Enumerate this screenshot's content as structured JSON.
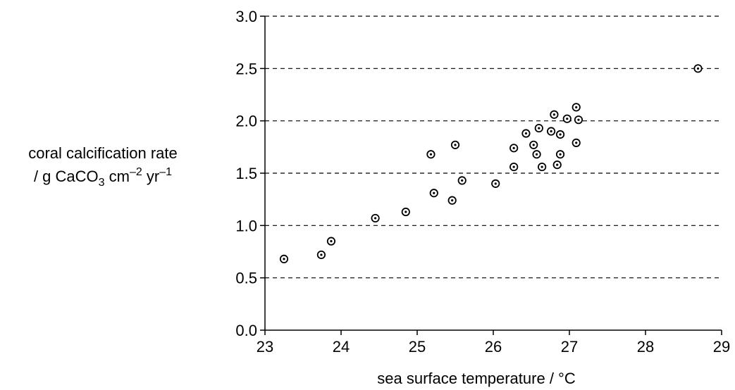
{
  "chart_data": {
    "type": "scatter",
    "title": "",
    "xlabel": "sea surface temperature / °C",
    "ylabel": {
      "line1": "coral calcification rate",
      "line2_prefix": "/ g CaCO",
      "line2_sub": "3",
      "line2_unit1": " cm",
      "line2_sup1": "–2",
      "line2_unit2": " yr",
      "line2_sup2": "–1"
    },
    "xlim": [
      23,
      29
    ],
    "ylim": [
      0.0,
      3.0
    ],
    "xticks": [
      "23",
      "24",
      "25",
      "26",
      "27",
      "28",
      "29"
    ],
    "yticks": [
      "0.0",
      "0.5",
      "1.0",
      "1.5",
      "2.0",
      "2.5",
      "3.0"
    ],
    "grid": "horizontal dashed",
    "marker": "circled dot",
    "points": [
      {
        "x": 23.25,
        "y": 0.68
      },
      {
        "x": 23.74,
        "y": 0.72
      },
      {
        "x": 23.87,
        "y": 0.85
      },
      {
        "x": 24.45,
        "y": 1.07
      },
      {
        "x": 24.85,
        "y": 1.13
      },
      {
        "x": 25.18,
        "y": 1.68
      },
      {
        "x": 25.22,
        "y": 1.31
      },
      {
        "x": 25.46,
        "y": 1.24
      },
      {
        "x": 25.5,
        "y": 1.77
      },
      {
        "x": 25.59,
        "y": 1.43
      },
      {
        "x": 26.03,
        "y": 1.4
      },
      {
        "x": 26.27,
        "y": 1.74
      },
      {
        "x": 26.27,
        "y": 1.56
      },
      {
        "x": 26.43,
        "y": 1.88
      },
      {
        "x": 26.53,
        "y": 1.77
      },
      {
        "x": 26.57,
        "y": 1.68
      },
      {
        "x": 26.6,
        "y": 1.93
      },
      {
        "x": 26.64,
        "y": 1.56
      },
      {
        "x": 26.76,
        "y": 1.9
      },
      {
        "x": 26.8,
        "y": 2.06
      },
      {
        "x": 26.84,
        "y": 1.58
      },
      {
        "x": 26.88,
        "y": 1.87
      },
      {
        "x": 26.88,
        "y": 1.68
      },
      {
        "x": 26.97,
        "y": 2.02
      },
      {
        "x": 27.09,
        "y": 2.13
      },
      {
        "x": 27.09,
        "y": 1.79
      },
      {
        "x": 27.12,
        "y": 2.01
      },
      {
        "x": 28.69,
        "y": 2.5
      }
    ]
  }
}
